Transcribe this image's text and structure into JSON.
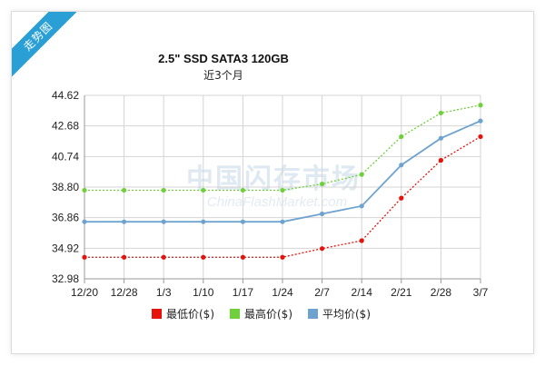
{
  "badge": "走势图",
  "watermark": {
    "cn": "中国闪存市场",
    "en": "ChinaFlashMarket.com"
  },
  "colors": {
    "min": "#e8120c",
    "max": "#6ed03a",
    "avg": "#6fa3cf",
    "grid": "#d4d4d4",
    "axis": "#9a9a9a"
  },
  "chart_data": {
    "type": "line",
    "title": "2.5\" SSD SATA3 120GB",
    "subtitle": "近3个月",
    "categories": [
      "12/20",
      "12/28",
      "1/3",
      "1/10",
      "1/17",
      "1/24",
      "2/7",
      "2/14",
      "2/21",
      "2/28",
      "3/7"
    ],
    "yticks": [
      "32.98",
      "34.92",
      "36.86",
      "38.80",
      "40.74",
      "42.68",
      "44.62"
    ],
    "ylim": [
      32.98,
      44.62
    ],
    "grid": true,
    "legend_position": "bottom",
    "series": [
      {
        "name": "最低价($)",
        "color": "#e8120c",
        "dashed": true,
        "values": [
          34.35,
          34.35,
          34.35,
          34.35,
          34.35,
          34.35,
          34.9,
          35.4,
          38.1,
          40.5,
          42.0
        ]
      },
      {
        "name": "最高价($)",
        "color": "#6ed03a",
        "dashed": true,
        "values": [
          38.6,
          38.6,
          38.6,
          38.6,
          38.6,
          38.6,
          39.0,
          39.6,
          42.0,
          43.5,
          44.0
        ]
      },
      {
        "name": "平均价($)",
        "color": "#6fa3cf",
        "dashed": false,
        "values": [
          36.6,
          36.6,
          36.6,
          36.6,
          36.6,
          36.6,
          37.1,
          37.6,
          40.2,
          41.9,
          43.0
        ]
      }
    ]
  }
}
